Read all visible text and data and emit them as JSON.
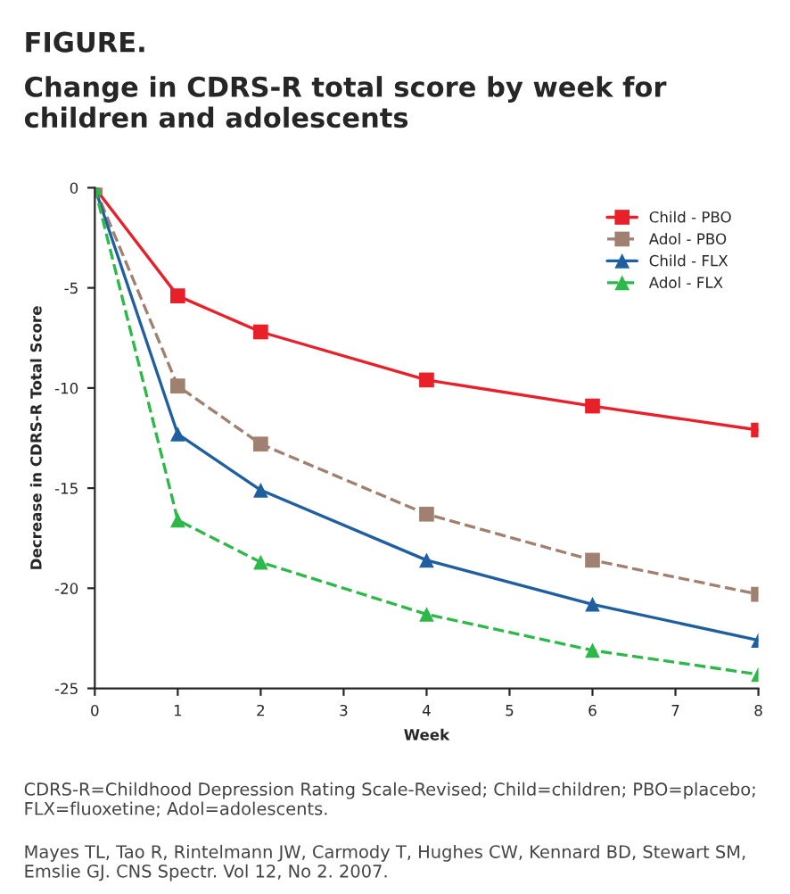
{
  "chart_data": {
    "type": "line",
    "title": "FIGURE.",
    "subtitle": "Change in CDRS-R total score by week for children and adolescents",
    "xlabel": "Week",
    "ylabel": "Decrease in CDRS-R Total Score",
    "x": [
      0,
      1,
      2,
      4,
      6,
      8
    ],
    "series": [
      {
        "name": "Child - PBO",
        "color": "#e8202a",
        "marker": "square",
        "line_style": "solid",
        "values": [
          0,
          -5.4,
          -7.2,
          -9.6,
          -10.9,
          -12.1
        ]
      },
      {
        "name": "Adol - PBO",
        "color": "#a08070",
        "marker": "square",
        "line_style": "dashed",
        "values": [
          0,
          -9.9,
          -12.8,
          -16.3,
          -18.6,
          -20.3
        ]
      },
      {
        "name": "Child - FLX",
        "color": "#1f5f9f",
        "marker": "triangle",
        "line_style": "solid",
        "values": [
          0,
          -12.3,
          -15.1,
          -18.6,
          -20.8,
          -22.6
        ]
      },
      {
        "name": "Adol - FLX",
        "color": "#2db84a",
        "marker": "triangle",
        "line_style": "dashed",
        "values": [
          0,
          -16.6,
          -18.7,
          -21.3,
          -23.1,
          -24.3
        ]
      }
    ],
    "xlim": [
      0,
      8
    ],
    "xticks": [
      0,
      1,
      2,
      3,
      4,
      5,
      6,
      7,
      8
    ],
    "ylim": [
      -25,
      0
    ],
    "yticks": [
      0,
      -5,
      -10,
      -15,
      -20,
      -25
    ],
    "legend": "top right",
    "grid": false,
    "annotations": [
      "CDRS-R=Childhood Depression Rating Scale-Revised; Child=children; PBO=placebo; FLX=fluoxetine; Adol=adolescents.",
      "Mayes TL, Tao R, Rintelmann JW, Carmody T, Hughes CW, Kennard BD, Stewart SM, Emslie GJ. CNS Spectr. Vol 12, No 2. 2007."
    ]
  }
}
